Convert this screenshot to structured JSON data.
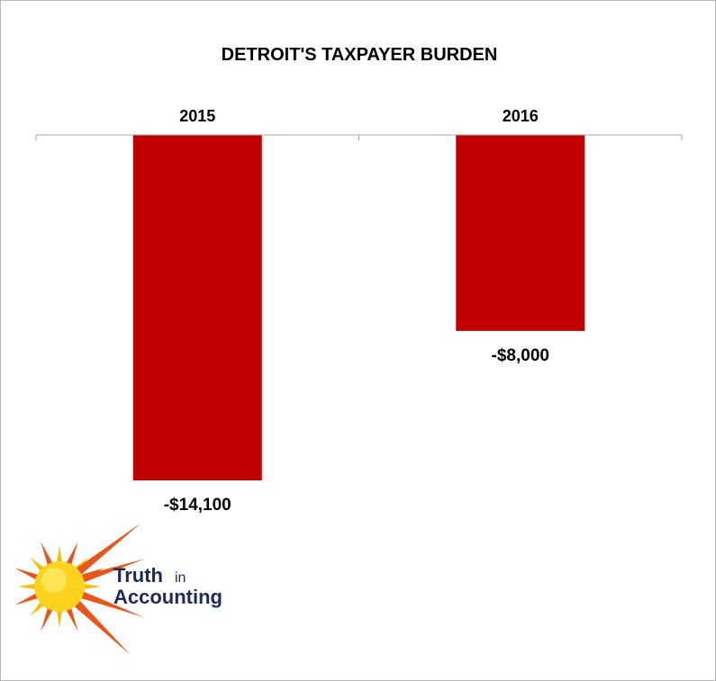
{
  "chart_data": {
    "type": "bar",
    "title": "DETROIT'S TAXPAYER BURDEN",
    "categories": [
      "2015",
      "2016"
    ],
    "values": [
      -14100,
      -8000
    ],
    "value_labels": [
      "-$14,100",
      "-$8,000"
    ],
    "xlabel": "",
    "ylabel": "",
    "ylim": [
      -14100,
      0
    ],
    "category_axis_position": "top",
    "grid": false,
    "legend": "none",
    "colors": {
      "bar": "#c00000",
      "axis": "#a6a6a6"
    }
  },
  "logo": {
    "text_truth": "Truth",
    "text_in": "in",
    "text_accounting": "Accounting",
    "colors": {
      "text": "#1f2a5c",
      "sun_core": "#ffd21e",
      "sun_rays_inner": "#f5c000",
      "sun_rays_outer": "#e8561c"
    }
  }
}
